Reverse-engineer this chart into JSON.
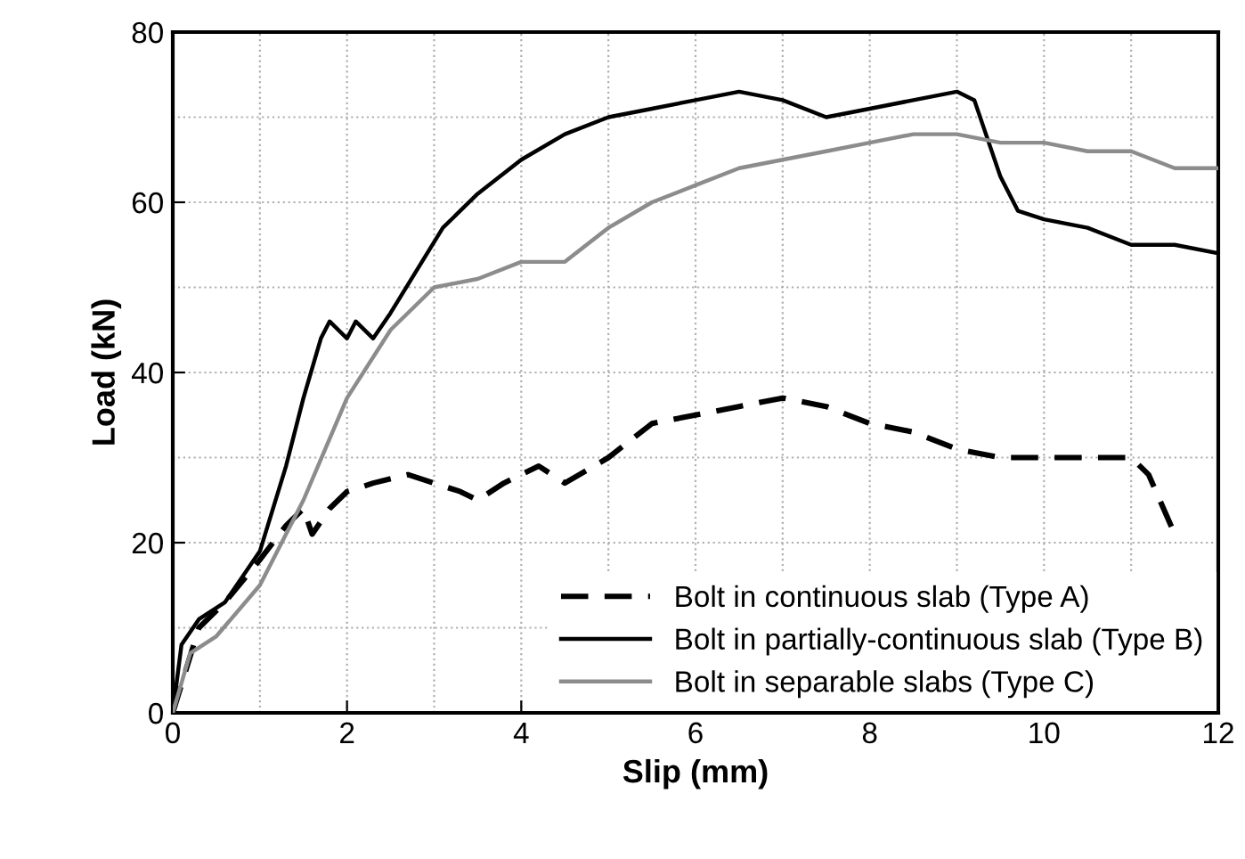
{
  "chart_data": {
    "type": "line",
    "xlabel": "Slip (mm)",
    "ylabel": "Load (kN)",
    "xlim": [
      0,
      12
    ],
    "ylim": [
      0,
      80
    ],
    "xticks": [
      0,
      {
        "value": 1,
        "label": null
      },
      2,
      {
        "value": 3,
        "label": null
      },
      4,
      {
        "value": 5,
        "label": null
      },
      6,
      {
        "value": 7,
        "label": null
      },
      8,
      {
        "value": 9,
        "label": null
      },
      10,
      {
        "value": 11,
        "label": null
      },
      12
    ],
    "yticks": [
      0,
      {
        "value": 10,
        "label": null
      },
      20,
      {
        "value": 30,
        "label": null
      },
      40,
      {
        "value": 50,
        "label": null
      },
      60,
      {
        "value": 70,
        "label": null
      },
      80
    ],
    "grid": true,
    "legend": "bottom right",
    "marker": "none",
    "series": [
      {
        "name": "Bolt in continuous slab (Type A)",
        "color": "#000000",
        "line_style": "dashed",
        "x": [
          0,
          0.3,
          0.6,
          1.0,
          1.3,
          1.5,
          1.6,
          1.8,
          2.0,
          2.3,
          2.7,
          3.0,
          3.3,
          3.5,
          3.8,
          4.2,
          4.5,
          5.0,
          5.5,
          6.0,
          6.5,
          7.0,
          7.5,
          8.0,
          8.5,
          9.0,
          9.5,
          10,
          10.5,
          11,
          11.2,
          11.5
        ],
        "values": [
          0,
          10,
          13,
          18,
          22,
          24,
          21,
          24,
          26,
          27,
          28,
          27,
          26,
          25,
          27,
          29,
          27,
          30,
          34,
          35,
          36,
          37,
          36,
          34,
          33,
          31,
          30,
          30,
          30,
          30,
          28,
          21
        ]
      },
      {
        "name": "Bolt in partially-continuous slab (Type B)",
        "color": "#000000",
        "line_style": "solid",
        "x": [
          0,
          0.1,
          0.3,
          0.6,
          1.0,
          1.3,
          1.5,
          1.7,
          1.8,
          2.0,
          2.1,
          2.3,
          2.5,
          2.8,
          3.1,
          3.5,
          4.0,
          4.5,
          5.0,
          5.5,
          6.0,
          6.5,
          7.0,
          7.5,
          8.0,
          8.5,
          9.0,
          9.2,
          9.5,
          9.7,
          10,
          10.5,
          11,
          11.5,
          12
        ],
        "values": [
          0,
          8,
          11,
          13,
          19,
          29,
          37,
          44,
          46,
          44,
          46,
          44,
          47,
          52,
          57,
          61,
          65,
          68,
          70,
          71,
          72,
          73,
          72,
          70,
          71,
          72,
          73,
          72,
          63,
          59,
          58,
          57,
          55,
          55,
          54
        ]
      },
      {
        "name": "Bolt in separable slabs (Type C)",
        "color": "#8c8c8c",
        "line_style": "solid",
        "x": [
          0,
          0.2,
          0.5,
          1.0,
          1.5,
          2.0,
          2.5,
          3.0,
          3.5,
          4.0,
          4.5,
          5.0,
          5.5,
          6.0,
          6.5,
          7.0,
          7.5,
          8.0,
          8.5,
          9.0,
          9.5,
          10,
          10.5,
          11,
          11.5,
          12
        ],
        "values": [
          0,
          7,
          9,
          15,
          25,
          37,
          45,
          50,
          51,
          53,
          53,
          57,
          60,
          62,
          64,
          65,
          66,
          67,
          68,
          68,
          67,
          67,
          66,
          66,
          64,
          64
        ]
      }
    ]
  }
}
